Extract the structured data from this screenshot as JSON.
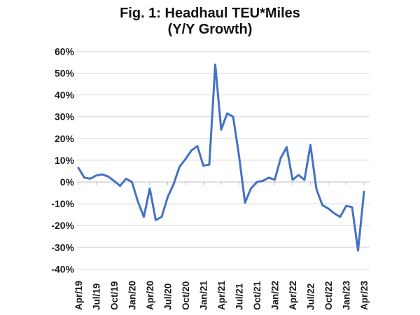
{
  "chart_data": {
    "type": "line",
    "title": "Fig. 1: Headhaul TEU*Miles",
    "subtitle": "(Y/Y Growth)",
    "x": [
      "Apr/19",
      "May/19",
      "Jun/19",
      "Jul/19",
      "Aug/19",
      "Sep/19",
      "Oct/19",
      "Nov/19",
      "Dec/19",
      "Jan/20",
      "Feb/20",
      "Mar/20",
      "Apr/20",
      "May/20",
      "Jun/20",
      "Jul/20",
      "Aug/20",
      "Sep/20",
      "Oct/20",
      "Nov/20",
      "Dec/20",
      "Jan/21",
      "Feb/21",
      "Mar/21",
      "Apr/21",
      "May/21",
      "Jun/21",
      "Jul/21",
      "Aug/21",
      "Sep/21",
      "Oct/21",
      "Nov/21",
      "Dec/21",
      "Jan/22",
      "Feb/22",
      "Mar/22",
      "Apr/22",
      "May/22",
      "Jun/22",
      "Jul/22",
      "Aug/22",
      "Sep/22",
      "Oct/22",
      "Nov/22",
      "Dec/22",
      "Jan/23",
      "Feb/23",
      "Mar/23",
      "Apr/23"
    ],
    "series": [
      {
        "name": "Headhaul TEU*Miles Y/Y Growth",
        "values": [
          6.5,
          2,
          1.5,
          3,
          3.5,
          2.5,
          0.5,
          -1.8,
          1.5,
          0,
          -9,
          -16,
          -3,
          -17.5,
          -16,
          -7,
          -1,
          7,
          10.5,
          14.5,
          16.5,
          7.5,
          8,
          54,
          24,
          31.5,
          30,
          12,
          -9.5,
          -3,
          0,
          0.5,
          2,
          1,
          11,
          16,
          1,
          3.2,
          1,
          17,
          -3.2,
          -10.6,
          -12.2,
          -14.4,
          -16,
          -11,
          -11.5,
          -31.5,
          -4.5
        ]
      }
    ],
    "x_tick_labels": [
      "Apr/19",
      "Jul/19",
      "Oct/19",
      "Jan/20",
      "Apr/20",
      "Jul/20",
      "Oct/20",
      "Jan/21",
      "Apr/21",
      "Jul/21",
      "Oct/21",
      "Jan/22",
      "Apr/22",
      "Jul/22",
      "Oct/22",
      "Jan/23",
      "Apr/23"
    ],
    "x_tick_every": 3,
    "ylim": [
      -40,
      60
    ],
    "ytick_step": 10,
    "ytick_suffix": "%",
    "grid": true,
    "legend": "none",
    "colors": {
      "line": "#4472C4",
      "gridline": "#D9D9D9",
      "axis": "#BFBFBF",
      "text": "#1a1a1a"
    }
  }
}
